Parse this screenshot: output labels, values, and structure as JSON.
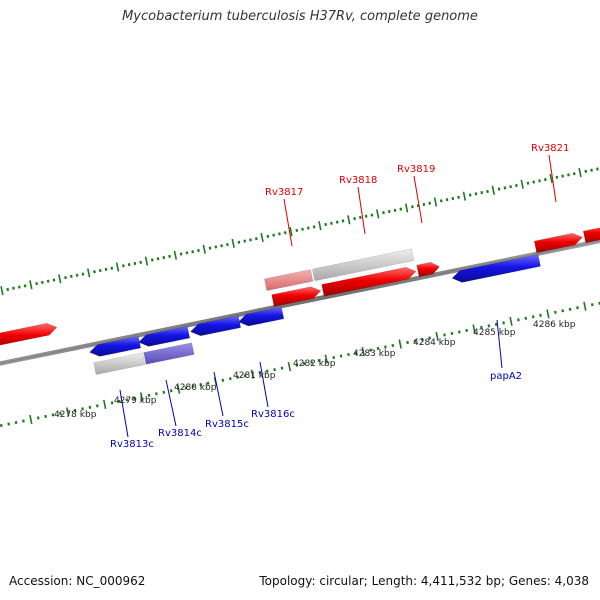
{
  "title": "Mycobacterium tuberculosis H37Rv, complete genome",
  "footer": {
    "accession": "Accession: NC_000962",
    "summary": "Topology: circular; Length: 4,411,532 bp; Genes: 4,038"
  },
  "colors": {
    "forward_gene": "#ee0000",
    "forward_gene_light": "#f08080",
    "reverse_gene": "#1a1ae6",
    "reverse_gene_light": "#7060d0",
    "pseudo_gene": "#c4c4c4",
    "backbone": "#7a7a7a",
    "tick": "#1e7a1e",
    "forward_label": "#dd0000",
    "reverse_label": "#0000bb",
    "scale_label": "#222222"
  },
  "scale": {
    "unit": "kbp",
    "labels": [
      "4278 kbp",
      "4279 kbp",
      "4280 kbp",
      "4281 kbp",
      "4282 kbp",
      "4283 kbp",
      "4284 kbp",
      "4285 kbp",
      "4286 kbp"
    ]
  },
  "gene_labels": {
    "forward": [
      "Rv3817",
      "Rv3818",
      "Rv3819",
      "Rv3821"
    ],
    "reverse": [
      "Rv3813c",
      "Rv3814c",
      "Rv3815c",
      "Rv3816c",
      "papA2"
    ]
  }
}
